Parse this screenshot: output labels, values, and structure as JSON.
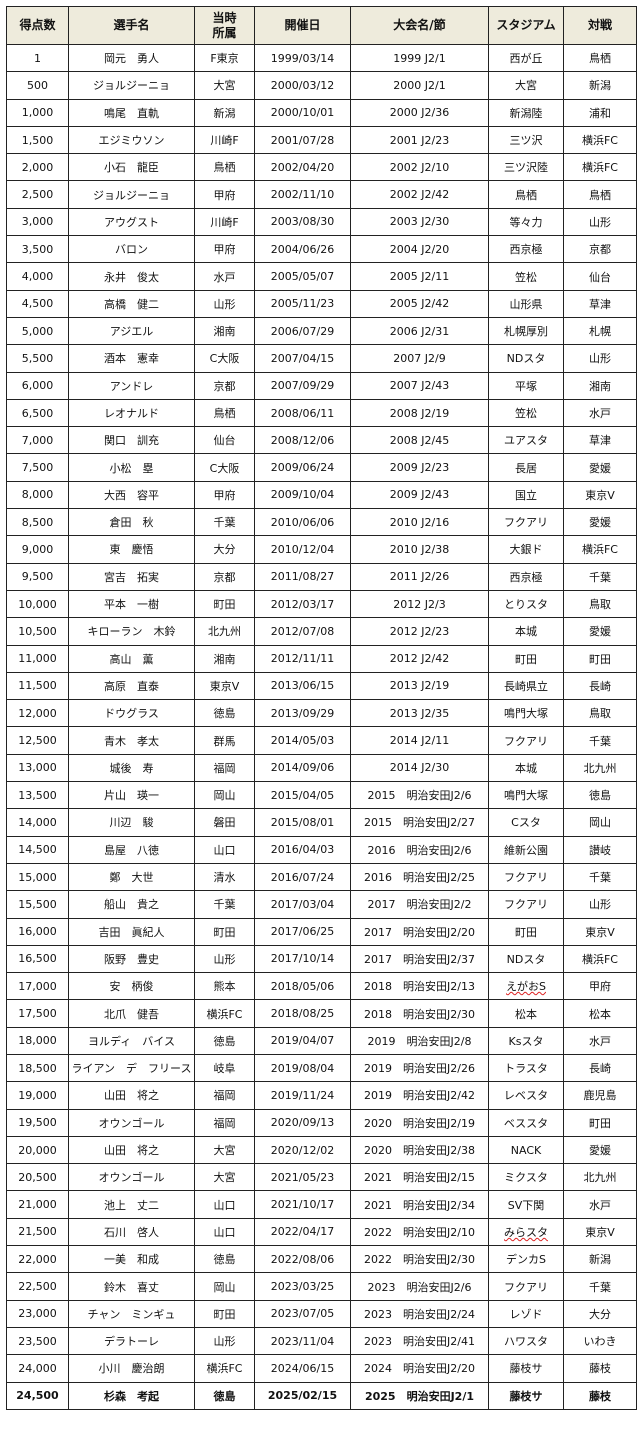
{
  "headers": [
    "得点数",
    "選手名",
    "当時\n所属",
    "開催日",
    "大会名/節",
    "スタジアム",
    "対戦"
  ],
  "header_bg": "#eeebdc",
  "rows": [
    [
      "1",
      "岡元　勇人",
      "F東京",
      "1999/03/14",
      "1999 J2/1",
      "西が丘",
      "鳥栖"
    ],
    [
      "500",
      "ジョルジーニョ",
      "大宮",
      "2000/03/12",
      "2000 J2/1",
      "大宮",
      "新潟"
    ],
    [
      "1,000",
      "鳴尾　直軌",
      "新潟",
      "2000/10/01",
      "2000 J2/36",
      "新潟陸",
      "浦和"
    ],
    [
      "1,500",
      "エジミウソン",
      "川崎F",
      "2001/07/28",
      "2001 J2/23",
      "三ツ沢",
      "横浜FC"
    ],
    [
      "2,000",
      "小石　龍臣",
      "鳥栖",
      "2002/04/20",
      "2002 J2/10",
      "三ツ沢陸",
      "横浜FC"
    ],
    [
      "2,500",
      "ジョルジーニョ",
      "甲府",
      "2002/11/10",
      "2002 J2/42",
      "鳥栖",
      "鳥栖"
    ],
    [
      "3,000",
      "アウグスト",
      "川崎F",
      "2003/08/30",
      "2003 J2/30",
      "等々力",
      "山形"
    ],
    [
      "3,500",
      "バロン",
      "甲府",
      "2004/06/26",
      "2004 J2/20",
      "西京極",
      "京都"
    ],
    [
      "4,000",
      "永井　俊太",
      "水戸",
      "2005/05/07",
      "2005 J2/11",
      "笠松",
      "仙台"
    ],
    [
      "4,500",
      "高橋　健二",
      "山形",
      "2005/11/23",
      "2005 J2/42",
      "山形県",
      "草津"
    ],
    [
      "5,000",
      "アジエル",
      "湘南",
      "2006/07/29",
      "2006 J2/31",
      "札幌厚別",
      "札幌"
    ],
    [
      "5,500",
      "酒本　憲幸",
      "C大阪",
      "2007/04/15",
      "2007 J2/9",
      "NDスタ",
      "山形"
    ],
    [
      "6,000",
      "アンドレ",
      "京都",
      "2007/09/29",
      "2007 J2/43",
      "平塚",
      "湘南"
    ],
    [
      "6,500",
      "レオナルド",
      "鳥栖",
      "2008/06/11",
      "2008 J2/19",
      "笠松",
      "水戸"
    ],
    [
      "7,000",
      "関口　訓充",
      "仙台",
      "2008/12/06",
      "2008 J2/45",
      "ユアスタ",
      "草津"
    ],
    [
      "7,500",
      "小松　塁",
      "C大阪",
      "2009/06/24",
      "2009 J2/23",
      "長居",
      "愛媛"
    ],
    [
      "8,000",
      "大西　容平",
      "甲府",
      "2009/10/04",
      "2009 J2/43",
      "国立",
      "東京V"
    ],
    [
      "8,500",
      "倉田　秋",
      "千葉",
      "2010/06/06",
      "2010 J2/16",
      "フクアリ",
      "愛媛"
    ],
    [
      "9,000",
      "東　慶悟",
      "大分",
      "2010/12/04",
      "2010 J2/38",
      "大銀ド",
      "横浜FC"
    ],
    [
      "9,500",
      "宮吉　拓実",
      "京都",
      "2011/08/27",
      "2011 J2/26",
      "西京極",
      "千葉"
    ],
    [
      "10,000",
      "平本　一樹",
      "町田",
      "2012/03/17",
      "2012 J2/3",
      "とりスタ",
      "鳥取"
    ],
    [
      "10,500",
      "キローラン　木鈴",
      "北九州",
      "2012/07/08",
      "2012 J2/23",
      "本城",
      "愛媛"
    ],
    [
      "11,000",
      "高山　薫",
      "湘南",
      "2012/11/11",
      "2012 J2/42",
      "町田",
      "町田"
    ],
    [
      "11,500",
      "高原　直泰",
      "東京V",
      "2013/06/15",
      "2013 J2/19",
      "長崎県立",
      "長崎"
    ],
    [
      "12,000",
      "ドウグラス",
      "徳島",
      "2013/09/29",
      "2013 J2/35",
      "鳴門大塚",
      "鳥取"
    ],
    [
      "12,500",
      "青木　孝太",
      "群馬",
      "2014/05/03",
      "2014 J2/11",
      "フクアリ",
      "千葉"
    ],
    [
      "13,000",
      "城後　寿",
      "福岡",
      "2014/09/06",
      "2014 J2/30",
      "本城",
      "北九州"
    ],
    [
      "13,500",
      "片山　瑛一",
      "岡山",
      "2015/04/05",
      "2015　明治安田J2/6",
      "鳴門大塚",
      "徳島"
    ],
    [
      "14,000",
      "川辺　駿",
      "磐田",
      "2015/08/01",
      "2015　明治安田J2/27",
      "Cスタ",
      "岡山"
    ],
    [
      "14,500",
      "島屋　八徳",
      "山口",
      "2016/04/03",
      "2016　明治安田J2/6",
      "維新公園",
      "讃岐"
    ],
    [
      "15,000",
      "鄭　大世",
      "清水",
      "2016/07/24",
      "2016　明治安田J2/25",
      "フクアリ",
      "千葉"
    ],
    [
      "15,500",
      "船山　貴之",
      "千葉",
      "2017/03/04",
      "2017　明治安田J2/2",
      "フクアリ",
      "山形"
    ],
    [
      "16,000",
      "吉田　眞紀人",
      "町田",
      "2017/06/25",
      "2017　明治安田J2/20",
      "町田",
      "東京V"
    ],
    [
      "16,500",
      "阪野　豊史",
      "山形",
      "2017/10/14",
      "2017　明治安田J2/37",
      "NDスタ",
      "横浜FC"
    ],
    [
      "17,000",
      "安　柄俊",
      "熊本",
      "2018/05/06",
      "2018　明治安田J2/13",
      "えがおS",
      "甲府"
    ],
    [
      "17,500",
      "北爪　健吾",
      "横浜FC",
      "2018/08/25",
      "2018　明治安田J2/30",
      "松本",
      "松本"
    ],
    [
      "18,000",
      "ヨルディ　バイス",
      "徳島",
      "2019/04/07",
      "2019　明治安田J2/8",
      "Ksスタ",
      "水戸"
    ],
    [
      "18,500",
      "ライアン　デ　フリース",
      "岐阜",
      "2019/08/04",
      "2019　明治安田J2/26",
      "トラスタ",
      "長崎"
    ],
    [
      "19,000",
      "山田　将之",
      "福岡",
      "2019/11/24",
      "2019　明治安田J2/42",
      "レベスタ",
      "鹿児島"
    ],
    [
      "19,500",
      "オウンゴール",
      "福岡",
      "2020/09/13",
      "2020　明治安田J2/19",
      "ベススタ",
      "町田"
    ],
    [
      "20,000",
      "山田　将之",
      "大宮",
      "2020/12/02",
      "2020　明治安田J2/38",
      "NACK",
      "愛媛"
    ],
    [
      "20,500",
      "オウンゴール",
      "大宮",
      "2021/05/23",
      "2021　明治安田J2/15",
      "ミクスタ",
      "北九州"
    ],
    [
      "21,000",
      "池上　丈二",
      "山口",
      "2021/10/17",
      "2021　明治安田J2/34",
      "SV下関",
      "水戸"
    ],
    [
      "21,500",
      "石川　啓人",
      "山口",
      "2022/04/17",
      "2022　明治安田J2/10",
      "みらスタ",
      "東京V"
    ],
    [
      "22,000",
      "一美　和成",
      "徳島",
      "2022/08/06",
      "2022　明治安田J2/30",
      "デンカS",
      "新潟"
    ],
    [
      "22,500",
      "鈴木　喜丈",
      "岡山",
      "2023/03/25",
      "2023　明治安田J2/6",
      "フクアリ",
      "千葉"
    ],
    [
      "23,000",
      "チャン　ミンギュ",
      "町田",
      "2023/07/05",
      "2023　明治安田J2/24",
      "レゾド",
      "大分"
    ],
    [
      "23,500",
      "デラトーレ",
      "山形",
      "2023/11/04",
      "2023　明治安田J2/41",
      "ハワスタ",
      "いわき"
    ],
    [
      "24,000",
      "小川　慶治朗",
      "横浜FC",
      "2024/06/15",
      "2024　明治安田J2/20",
      "藤枝サ",
      "藤枝"
    ],
    [
      "24,500",
      "杉森　考起",
      "徳島",
      "2025/02/15",
      "2025　明治安田J2/1",
      "藤枝サ",
      "藤枝"
    ]
  ],
  "bold_last_row": true,
  "spellcheck_underlined": [
    "えがおS",
    "みらスタ"
  ]
}
